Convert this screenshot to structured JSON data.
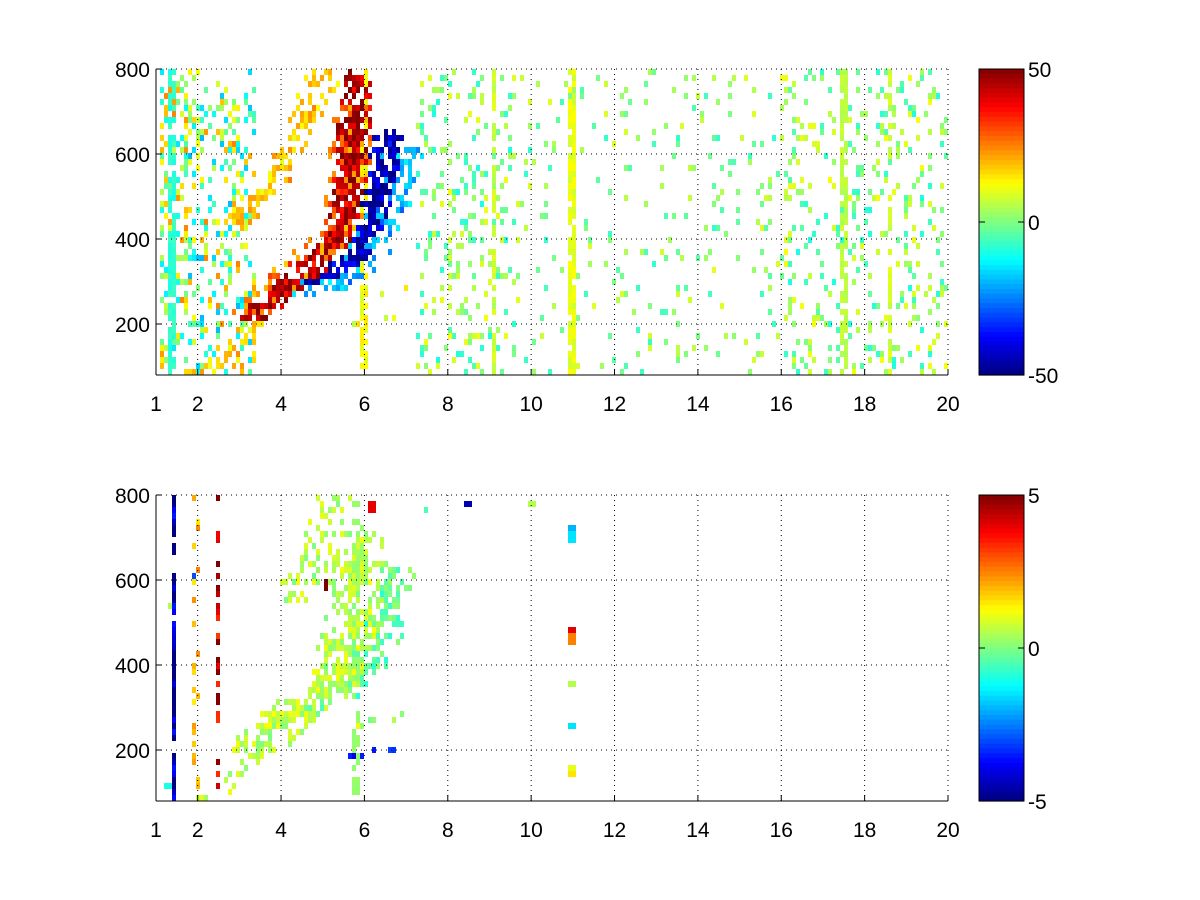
{
  "chart_data": [
    {
      "type": "heatmap",
      "title": "",
      "xlabel": "",
      "ylabel": "",
      "xlim": [
        1,
        20
      ],
      "ylim": [
        80,
        800
      ],
      "x_ticks": [
        1,
        2,
        4,
        6,
        8,
        10,
        12,
        14,
        16,
        18,
        20
      ],
      "x_tick_labels": [
        "1",
        "2",
        "4",
        "6",
        "8",
        "10",
        "12",
        "14",
        "16",
        "18",
        "20"
      ],
      "y_ticks": [
        200,
        400,
        600,
        800
      ],
      "y_tick_labels": [
        "200",
        "400",
        "600",
        "800"
      ],
      "grid": "dotted",
      "colormap": "jet",
      "clim": [
        -50,
        50
      ],
      "colorbar_ticks": [
        50,
        0,
        -50
      ],
      "colorbar_tick_labels": [
        "50",
        "0",
        "-50"
      ],
      "features": [
        {
          "kind": "band",
          "points": [
            [
              3.4,
              220
            ],
            [
              4.0,
              280
            ],
            [
              4.6,
              320
            ],
            [
              5.0,
              360
            ],
            [
              5.4,
              420
            ],
            [
              5.65,
              520
            ],
            [
              5.75,
              650
            ],
            [
              5.8,
              780
            ]
          ],
          "value": 45,
          "spread": 0.16,
          "density": 0.95
        },
        {
          "kind": "band",
          "points": [
            [
              3.3,
              230
            ],
            [
              4.0,
              300
            ],
            [
              4.6,
              355
            ],
            [
              5.0,
              380
            ],
            [
              5.4,
              450
            ],
            [
              5.6,
              560
            ],
            [
              5.7,
              700
            ]
          ],
          "value": 25,
          "spread": 0.22,
          "density": 0.7
        },
        {
          "kind": "band",
          "points": [
            [
              4.8,
              300
            ],
            [
              5.3,
              330
            ],
            [
              5.8,
              360
            ],
            [
              6.1,
              420
            ],
            [
              6.4,
              540
            ],
            [
              6.6,
              640
            ]
          ],
          "value": -45,
          "spread": 0.16,
          "density": 0.9
        },
        {
          "kind": "band",
          "points": [
            [
              4.5,
              280
            ],
            [
              5.2,
              300
            ],
            [
              5.9,
              330
            ],
            [
              6.3,
              400
            ],
            [
              6.6,
              500
            ],
            [
              6.9,
              600
            ]
          ],
          "value": -20,
          "spread": 0.22,
          "density": 0.6
        },
        {
          "kind": "band",
          "points": [
            [
              3.0,
              440
            ],
            [
              3.8,
              540
            ],
            [
              4.4,
              650
            ],
            [
              4.8,
              740
            ],
            [
              5.1,
              800
            ]
          ],
          "value": 18,
          "spread": 0.18,
          "density": 0.55
        },
        {
          "kind": "band",
          "points": [
            [
              2.0,
              90
            ],
            [
              2.6,
              110
            ],
            [
              3.0,
              160
            ],
            [
              3.4,
              210
            ]
          ],
          "value": 15,
          "spread": 0.15,
          "density": 0.7
        },
        {
          "kind": "band",
          "points": [
            [
              5.8,
              200
            ],
            [
              6.2,
              210
            ],
            [
              6.6,
              210
            ],
            [
              7.0,
              220
            ]
          ],
          "value": 10,
          "spread": 0.08,
          "density": 0.4
        },
        {
          "kind": "band",
          "points": [
            [
              6.0,
              260
            ],
            [
              6.4,
              280
            ],
            [
              6.9,
              290
            ]
          ],
          "value": 12,
          "spread": 0.1,
          "density": 0.4
        },
        {
          "kind": "column",
          "x": [
            1.1,
            1.8
          ],
          "value_range": [
            -15,
            25
          ],
          "density": 0.35
        },
        {
          "kind": "column",
          "x": [
            1.8,
            3.4
          ],
          "value_range": [
            -20,
            25
          ],
          "density": 0.25
        },
        {
          "kind": "column",
          "x": [
            7.2,
            9.6
          ],
          "value_range": [
            -10,
            12
          ],
          "density": 0.18
        },
        {
          "kind": "column",
          "x": [
            9.6,
            16.0
          ],
          "value_range": [
            -8,
            10
          ],
          "density": 0.07
        },
        {
          "kind": "column",
          "x": [
            16.0,
            20.0
          ],
          "value_range": [
            -10,
            12
          ],
          "density": 0.16
        },
        {
          "kind": "stripe",
          "x": 11.0,
          "value": 10,
          "density": 0.85
        },
        {
          "kind": "stripe",
          "x": 9.1,
          "value": 8,
          "density": 0.5
        },
        {
          "kind": "stripe",
          "x": 17.5,
          "value": 6,
          "density": 0.75
        },
        {
          "kind": "stripe",
          "x": 18.6,
          "value": 8,
          "density": 0.65
        },
        {
          "kind": "stripe",
          "x": 1.4,
          "value": -8,
          "density": 0.7
        },
        {
          "kind": "stripe",
          "x": 6.0,
          "value": 12,
          "density": 0.6
        }
      ]
    },
    {
      "type": "heatmap",
      "title": "",
      "xlabel": "",
      "ylabel": "",
      "xlim": [
        1,
        20
      ],
      "ylim": [
        80,
        800
      ],
      "x_ticks": [
        1,
        2,
        4,
        6,
        8,
        10,
        12,
        14,
        16,
        18,
        20
      ],
      "x_tick_labels": [
        "1",
        "2",
        "4",
        "6",
        "8",
        "10",
        "12",
        "14",
        "16",
        "18",
        "20"
      ],
      "y_ticks": [
        200,
        400,
        600,
        800
      ],
      "y_tick_labels": [
        "200",
        "400",
        "600",
        "800"
      ],
      "grid": "dotted",
      "colormap": "jet",
      "clim": [
        -5,
        5
      ],
      "colorbar_ticks": [
        5,
        0,
        -5
      ],
      "colorbar_tick_labels": [
        "5",
        "0",
        "-5"
      ],
      "features": [
        {
          "kind": "band",
          "points": [
            [
              3.4,
              210
            ],
            [
              4.0,
              270
            ],
            [
              4.6,
              310
            ],
            [
              5.0,
              340
            ],
            [
              5.4,
              400
            ],
            [
              5.65,
              500
            ],
            [
              5.8,
              700
            ]
          ],
          "value": 0.6,
          "spread": 0.3,
          "density": 0.75
        },
        {
          "kind": "band",
          "points": [
            [
              4.8,
              300
            ],
            [
              5.4,
              330
            ],
            [
              6.0,
              380
            ],
            [
              6.4,
              480
            ],
            [
              6.7,
              620
            ]
          ],
          "value": -0.3,
          "spread": 0.22,
          "density": 0.55
        },
        {
          "kind": "band",
          "points": [
            [
              4.2,
              540
            ],
            [
              4.7,
              650
            ],
            [
              5.1,
              750
            ],
            [
              5.4,
              790
            ]
          ],
          "value": 0.5,
          "spread": 0.18,
          "density": 0.45
        },
        {
          "kind": "band",
          "points": [
            [
              2.0,
              90
            ],
            [
              2.6,
              100
            ],
            [
              3.0,
              140
            ],
            [
              3.4,
              190
            ]
          ],
          "value": 0.5,
          "spread": 0.12,
          "density": 0.5
        },
        {
          "kind": "band",
          "points": [
            [
              5.8,
              190
            ],
            [
              6.2,
              195
            ],
            [
              6.6,
              200
            ]
          ],
          "value": -3.5,
          "spread": 0.08,
          "density": 0.55
        },
        {
          "kind": "band",
          "points": [
            [
              5.8,
              260
            ],
            [
              6.3,
              270
            ],
            [
              6.9,
              280
            ]
          ],
          "value": 0.5,
          "spread": 0.08,
          "density": 0.45
        },
        {
          "kind": "stripe",
          "x": 1.45,
          "value": -5,
          "density": 0.9
        },
        {
          "kind": "stripe",
          "x": 2.5,
          "value": 4.5,
          "density": 0.5
        },
        {
          "kind": "stripe",
          "x": 1.95,
          "value": 2.0,
          "density": 0.3
        },
        {
          "kind": "stripe",
          "x": 5.8,
          "value": 0.2,
          "density": 0.6
        },
        {
          "kind": "spots",
          "points": [
            [
              11.0,
              720,
              -2
            ],
            [
              11.0,
              700,
              -1.5
            ],
            [
              11.0,
              480,
              4
            ],
            [
              11.0,
              460,
              2.5
            ],
            [
              11.0,
              450,
              3
            ],
            [
              11.0,
              360,
              0.5
            ],
            [
              11.0,
              260,
              -1.5
            ],
            [
              11.0,
              160,
              1
            ],
            [
              11.0,
              150,
              1.5
            ],
            [
              8.5,
              780,
              -4.5
            ],
            [
              10.0,
              780,
              0.5
            ],
            [
              7.5,
              760,
              -0.5
            ],
            [
              5.1,
              590,
              5
            ],
            [
              6.2,
              770,
              4
            ],
            [
              1.9,
              610,
              -3
            ],
            [
              1.35,
              540,
              0.5
            ],
            [
              1.3,
              120,
              -1
            ],
            [
              4.9,
              800,
              0.8
            ]
          ]
        }
      ]
    }
  ]
}
